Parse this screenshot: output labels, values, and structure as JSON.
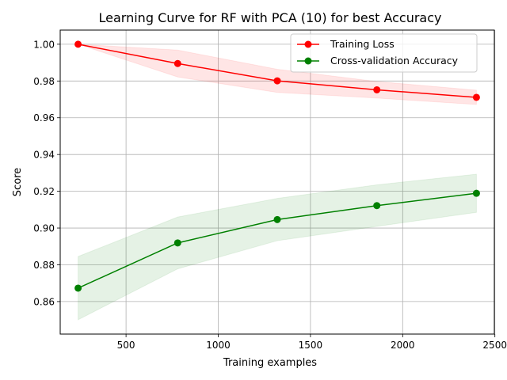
{
  "chart_data": {
    "type": "line",
    "title": "Learning Curve for RF with PCA (10) for best Accuracy",
    "xlabel": "Training examples",
    "ylabel": "Score",
    "xlim": [
      143,
      2497
    ],
    "ylim": [
      0.8423,
      1.0077
    ],
    "xticks": [
      500,
      1000,
      1500,
      2000,
      2500
    ],
    "yticks": [
      0.86,
      0.88,
      0.9,
      0.92,
      0.94,
      0.96,
      0.98,
      1.0
    ],
    "grid": true,
    "legend": "top-right",
    "x": [
      240,
      780,
      1320,
      1860,
      2400
    ],
    "series": [
      {
        "name": "Training Loss",
        "color": "#ff0000",
        "band_color": "#ff0000",
        "values": [
          1.0,
          0.9895,
          0.9801,
          0.9752,
          0.9711
        ],
        "lower": [
          1.0,
          0.9822,
          0.9738,
          0.9707,
          0.9672
        ],
        "upper": [
          1.0,
          0.9968,
          0.9864,
          0.9797,
          0.975
        ]
      },
      {
        "name": "Cross-validation Accuracy",
        "color": "#008000",
        "band_color": "#008000",
        "values": [
          0.8673,
          0.8919,
          0.9046,
          0.9122,
          0.9189
        ],
        "lower": [
          0.8501,
          0.8778,
          0.8931,
          0.9009,
          0.9085
        ],
        "upper": [
          0.8845,
          0.906,
          0.9161,
          0.9235,
          0.9293
        ]
      }
    ]
  }
}
